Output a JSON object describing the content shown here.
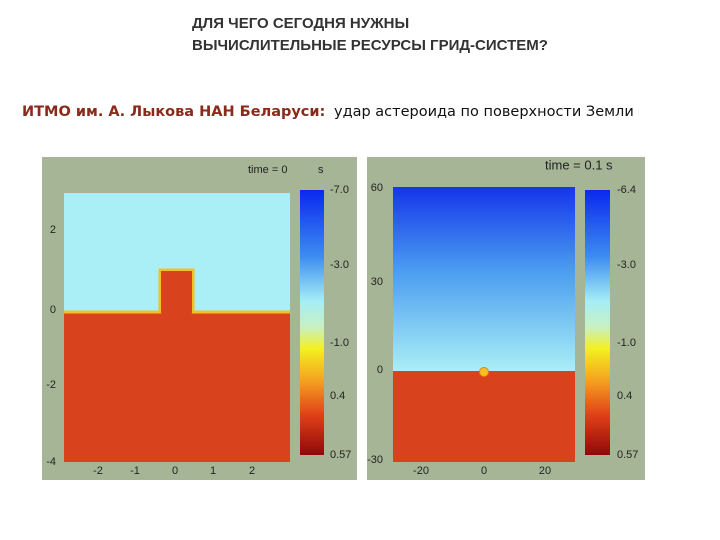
{
  "header": {
    "title_lines": [
      "ДЛЯ ЧЕГО СЕГОДНЯ НУЖНЫ",
      "ВЫЧИСЛИТЕЛЬНЫЕ РЕСУРСЫ ГРИД-СИСТЕМ?"
    ]
  },
  "subtitle": {
    "institution": "ИТМО им. А. Лыкова НАН Беларуси:",
    "topic": "удар астероида по поверхности Земли"
  },
  "panels": [
    {
      "time_label": "time = 0",
      "time_unit": "s",
      "y_ticks": [
        "2",
        "0",
        "-2",
        "-4"
      ],
      "x_ticks": [
        "-2",
        "-1",
        "0",
        "1",
        "2"
      ],
      "colorbar_labels": [
        "-7.0",
        "-3.0",
        "-1.0",
        "0.4",
        "0.57"
      ]
    },
    {
      "time_label": "time = 0.1 s",
      "y_ticks": [
        "60",
        "30",
        "0",
        "-30"
      ],
      "x_ticks": [
        "-20",
        "0",
        "20"
      ],
      "colorbar_labels": [
        "-6.4",
        "-3.0",
        "-1.0",
        "0.4",
        "0.57"
      ]
    }
  ]
}
